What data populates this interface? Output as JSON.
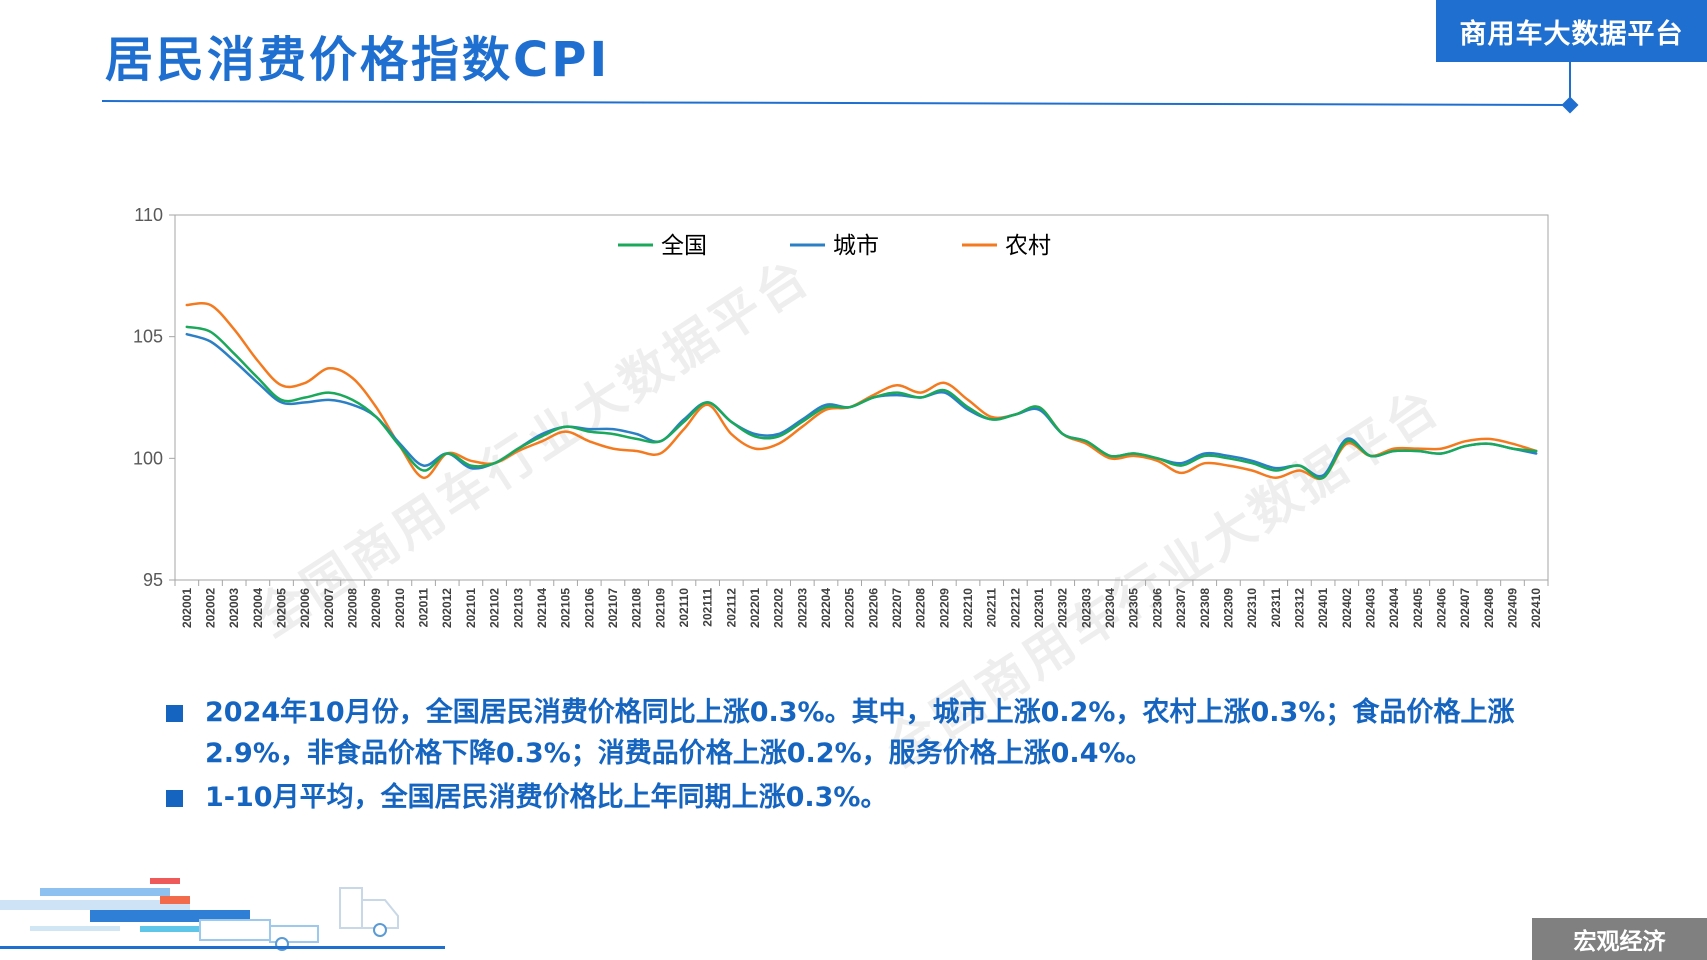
{
  "page": {
    "title": "居民消费价格指数CPI",
    "brand": "商用车大数据平台",
    "section_tag": "宏观经济",
    "watermark": "全国商用车行业大数据平台"
  },
  "bullets": [
    "2024年10月份，全国居民消费价格同比上涨0.3%。其中，城市上涨0.2%，农村上涨0.3%；食品价格上涨2.9%，非食品价格下降0.3%；消费品价格上涨0.2%，服务价格上涨0.4%。",
    "1-10月平均，全国居民消费价格比上年同期上涨0.3%。"
  ],
  "colors": {
    "accent": "#1e6fd0",
    "series": [
      "#1aa85a",
      "#2b7fc5",
      "#f47a1f"
    ]
  },
  "chart_data": {
    "type": "line",
    "title": "",
    "xlabel": "",
    "ylabel": "",
    "ylim": [
      95,
      110
    ],
    "yticks": [
      95,
      100,
      105,
      110
    ],
    "grid": false,
    "legend_position": "top-center",
    "x": [
      "202001",
      "202002",
      "202003",
      "202004",
      "202005",
      "202006",
      "202007",
      "202008",
      "202009",
      "202010",
      "202011",
      "202012",
      "202101",
      "202102",
      "202103",
      "202104",
      "202105",
      "202106",
      "202107",
      "202108",
      "202109",
      "202110",
      "202111",
      "202112",
      "202201",
      "202202",
      "202203",
      "202204",
      "202205",
      "202206",
      "202207",
      "202208",
      "202209",
      "202210",
      "202211",
      "202212",
      "202301",
      "202302",
      "202303",
      "202304",
      "202305",
      "202306",
      "202307",
      "202308",
      "202309",
      "202310",
      "202311",
      "202312",
      "202401",
      "202402",
      "202403",
      "202404",
      "202405",
      "202406",
      "202407",
      "202408",
      "202409",
      "202410"
    ],
    "series": [
      {
        "name": "全国",
        "values": [
          105.4,
          105.2,
          104.3,
          103.3,
          102.4,
          102.5,
          102.7,
          102.4,
          101.7,
          100.5,
          99.5,
          100.2,
          99.7,
          99.8,
          100.4,
          100.9,
          101.3,
          101.1,
          101.0,
          100.8,
          100.7,
          101.5,
          102.3,
          101.5,
          100.9,
          100.9,
          101.5,
          102.1,
          102.1,
          102.5,
          102.7,
          102.5,
          102.8,
          102.1,
          101.6,
          101.8,
          102.1,
          101.0,
          100.7,
          100.1,
          100.2,
          100.0,
          99.7,
          100.1,
          100.0,
          99.8,
          99.5,
          99.7,
          99.2,
          100.7,
          100.1,
          100.3,
          100.3,
          100.2,
          100.5,
          100.6,
          100.4,
          100.3
        ]
      },
      {
        "name": "城市",
        "values": [
          105.1,
          104.8,
          104.0,
          103.1,
          102.3,
          102.3,
          102.4,
          102.2,
          101.7,
          100.6,
          99.7,
          100.2,
          99.6,
          99.8,
          100.4,
          101.0,
          101.3,
          101.2,
          101.2,
          101.0,
          100.7,
          101.6,
          102.3,
          101.5,
          101.0,
          101.0,
          101.6,
          102.2,
          102.1,
          102.5,
          102.6,
          102.5,
          102.7,
          102.0,
          101.6,
          101.8,
          102.0,
          101.0,
          100.7,
          100.1,
          100.2,
          100.0,
          99.8,
          100.2,
          100.1,
          99.9,
          99.6,
          99.7,
          99.3,
          100.8,
          100.1,
          100.3,
          100.3,
          100.2,
          100.5,
          100.6,
          100.4,
          100.2
        ]
      },
      {
        "name": "农村",
        "values": [
          106.3,
          106.3,
          105.3,
          104.0,
          103.0,
          103.1,
          103.7,
          103.3,
          102.1,
          100.5,
          99.2,
          100.2,
          99.9,
          99.8,
          100.3,
          100.7,
          101.1,
          100.7,
          100.4,
          100.3,
          100.2,
          101.2,
          102.2,
          101.0,
          100.4,
          100.6,
          101.3,
          102.0,
          102.1,
          102.6,
          103.0,
          102.7,
          103.1,
          102.4,
          101.7,
          101.8,
          102.1,
          101.0,
          100.6,
          100.0,
          100.1,
          99.9,
          99.4,
          99.8,
          99.7,
          99.5,
          99.2,
          99.5,
          99.2,
          100.6,
          100.1,
          100.4,
          100.4,
          100.4,
          100.7,
          100.8,
          100.6,
          100.3
        ]
      }
    ]
  }
}
